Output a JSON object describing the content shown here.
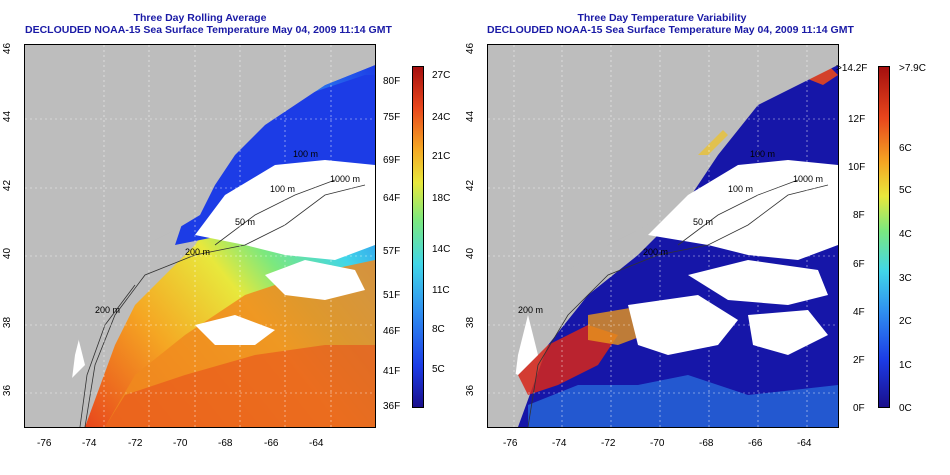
{
  "left_panel": {
    "title_line1": "Three Day Rolling Average",
    "title_line2": "DECLOUDED NOAA-15 Sea Surface Temperature May 04, 2009 11:14 GMT",
    "x_ticks": [
      "-76",
      "-74",
      "-72",
      "-70",
      "-68",
      "-66",
      "-64"
    ],
    "y_ticks": [
      "36",
      "38",
      "40",
      "42",
      "44",
      "46"
    ],
    "contour_labels": [
      "100 m",
      "1000 m",
      "100 m",
      "50 m",
      "200 m",
      "200 m"
    ],
    "colorbar_f": [
      "80F",
      "75F",
      "69F",
      "64F",
      "57F",
      "51F",
      "46F",
      "41F",
      "36F"
    ],
    "colorbar_c": [
      "27C",
      "24C",
      "21C",
      "18C",
      "14C",
      "11C",
      "8C",
      "5C"
    ]
  },
  "right_panel": {
    "title_line1": "Three Day Temperature Variability",
    "title_line2": "DECLOUDED NOAA-15 Sea Surface Temperature May 04, 2009 11:14 GMT",
    "x_ticks": [
      "-76",
      "-74",
      "-72",
      "-70",
      "-68",
      "-66",
      "-64"
    ],
    "y_ticks": [
      "36",
      "38",
      "40",
      "42",
      "44",
      "46"
    ],
    "contour_labels": [
      "100 m",
      "1000 m",
      "100 m",
      "50 m",
      "200 m",
      "200 m"
    ],
    "colorbar_f": [
      ">14.2F",
      "12F",
      "10F",
      "8F",
      "6F",
      "4F",
      "2F",
      "0F"
    ],
    "colorbar_c": [
      ">7.9C",
      "6C",
      "5C",
      "4C",
      "3C",
      "2C",
      "1C",
      "0C"
    ]
  },
  "colors": {
    "land": "#bdbdbd",
    "title": "#1a1aa6",
    "sst_scale": [
      "#1a0f8c",
      "#1c3ce6",
      "#2f8ff0",
      "#41d6e8",
      "#7ce87e",
      "#e8e83c",
      "#f5a623",
      "#e8461c",
      "#a50f0f"
    ]
  }
}
